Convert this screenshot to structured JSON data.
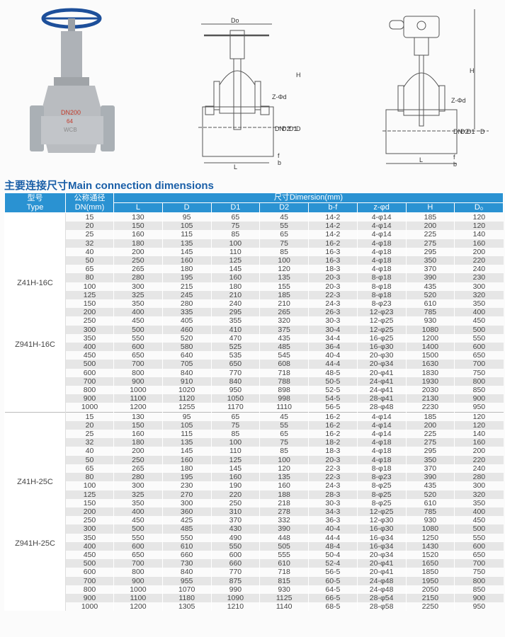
{
  "photo": {
    "marking": "DN200 64 WCB",
    "handwheel_color": "#1d4f9a",
    "body_color": "#b9bcc0"
  },
  "drawing1": {
    "labels": {
      "Do": "Do",
      "H": "H",
      "zd": "Z-Φd",
      "DN": "DN",
      "D2": "D2",
      "D1": "D1",
      "D": "D",
      "L": "L",
      "f": "f",
      "b": "b"
    }
  },
  "drawing2": {
    "labels": {
      "H": "H",
      "zd": "Z-Φd",
      "DN": "DN",
      "D2": "D2",
      "D1": "D1",
      "D": "D",
      "L": "L",
      "f": "f",
      "b": "b"
    }
  },
  "section_title": "主要连接尺寸Main connection dimensions",
  "table": {
    "header": {
      "type_cn": "型号",
      "type_en": "Type",
      "dn_cn": "公称通径",
      "dn_en": "DN(mm)",
      "dim_group": "尺寸Dimersion(mm)",
      "columns": [
        "L",
        "D",
        "D1",
        "D2",
        "b-f",
        "z-φd",
        "H",
        "D₀"
      ]
    },
    "header_color": "#2a92d2",
    "groups": [
      {
        "types": [
          "Z41H-16C",
          "Z941H-16C"
        ],
        "rows": [
          [
            "15",
            "130",
            "95",
            "65",
            "45",
            "14-2",
            "4-φ14",
            "185",
            "120"
          ],
          [
            "20",
            "150",
            "105",
            "75",
            "55",
            "14-2",
            "4-φ14",
            "200",
            "120"
          ],
          [
            "25",
            "160",
            "115",
            "85",
            "65",
            "14-2",
            "4-φ14",
            "225",
            "140"
          ],
          [
            "32",
            "180",
            "135",
            "100",
            "75",
            "16-2",
            "4-φ18",
            "275",
            "160"
          ],
          [
            "40",
            "200",
            "145",
            "110",
            "85",
            "16-3",
            "4-φ18",
            "295",
            "200"
          ],
          [
            "50",
            "250",
            "160",
            "125",
            "100",
            "16-3",
            "4-φ18",
            "350",
            "220"
          ],
          [
            "65",
            "265",
            "180",
            "145",
            "120",
            "18-3",
            "4-φ18",
            "370",
            "240"
          ],
          [
            "80",
            "280",
            "195",
            "160",
            "135",
            "20-3",
            "8-φ18",
            "390",
            "230"
          ],
          [
            "100",
            "300",
            "215",
            "180",
            "155",
            "20-3",
            "8-φ18",
            "435",
            "300"
          ],
          [
            "125",
            "325",
            "245",
            "210",
            "185",
            "22-3",
            "8-φ18",
            "520",
            "320"
          ],
          [
            "150",
            "350",
            "280",
            "240",
            "210",
            "24-3",
            "8-φ23",
            "610",
            "350"
          ],
          [
            "200",
            "400",
            "335",
            "295",
            "265",
            "26-3",
            "12-φ23",
            "785",
            "400"
          ],
          [
            "250",
            "450",
            "405",
            "355",
            "320",
            "30-3",
            "12-φ25",
            "930",
            "450"
          ],
          [
            "300",
            "500",
            "460",
            "410",
            "375",
            "30-4",
            "12-φ25",
            "1080",
            "500"
          ],
          [
            "350",
            "550",
            "520",
            "470",
            "435",
            "34-4",
            "16-φ25",
            "1200",
            "550"
          ],
          [
            "400",
            "600",
            "580",
            "525",
            "485",
            "36-4",
            "16-φ30",
            "1400",
            "600"
          ],
          [
            "450",
            "650",
            "640",
            "535",
            "545",
            "40-4",
            "20-φ30",
            "1500",
            "650"
          ],
          [
            "500",
            "700",
            "705",
            "650",
            "608",
            "44-4",
            "20-φ34",
            "1630",
            "700"
          ],
          [
            "600",
            "800",
            "840",
            "770",
            "718",
            "48-5",
            "20-φ41",
            "1830",
            "750"
          ],
          [
            "700",
            "900",
            "910",
            "840",
            "788",
            "50-5",
            "24-φ41",
            "1930",
            "800"
          ],
          [
            "800",
            "1000",
            "1020",
            "950",
            "898",
            "52-5",
            "24-φ41",
            "2030",
            "850"
          ],
          [
            "900",
            "1100",
            "1120",
            "1050",
            "998",
            "54-5",
            "28-φ41",
            "2130",
            "900"
          ],
          [
            "1000",
            "1200",
            "1255",
            "1170",
            "1110",
            "56-5",
            "28-φ48",
            "2230",
            "950"
          ]
        ]
      },
      {
        "types": [
          "Z41H-25C",
          "Z941H-25C"
        ],
        "rows": [
          [
            "15",
            "130",
            "95",
            "65",
            "45",
            "16-2",
            "4-φ14",
            "185",
            "120"
          ],
          [
            "20",
            "150",
            "105",
            "75",
            "55",
            "16-2",
            "4-φ14",
            "200",
            "120"
          ],
          [
            "25",
            "160",
            "115",
            "85",
            "65",
            "16-2",
            "4-φ14",
            "225",
            "140"
          ],
          [
            "32",
            "180",
            "135",
            "100",
            "75",
            "18-2",
            "4-φ18",
            "275",
            "160"
          ],
          [
            "40",
            "200",
            "145",
            "110",
            "85",
            "18-3",
            "4-φ18",
            "295",
            "200"
          ],
          [
            "50",
            "250",
            "160",
            "125",
            "100",
            "20-3",
            "4-φ18",
            "350",
            "220"
          ],
          [
            "65",
            "265",
            "180",
            "145",
            "120",
            "22-3",
            "8-φ18",
            "370",
            "240"
          ],
          [
            "80",
            "280",
            "195",
            "160",
            "135",
            "22-3",
            "8-φ23",
            "390",
            "280"
          ],
          [
            "100",
            "300",
            "230",
            "190",
            "160",
            "24-3",
            "8-φ25",
            "435",
            "300"
          ],
          [
            "125",
            "325",
            "270",
            "220",
            "188",
            "28-3",
            "8-φ25",
            "520",
            "320"
          ],
          [
            "150",
            "350",
            "300",
            "250",
            "218",
            "30-3",
            "8-φ25",
            "610",
            "350"
          ],
          [
            "200",
            "400",
            "360",
            "310",
            "278",
            "34-3",
            "12-φ25",
            "785",
            "400"
          ],
          [
            "250",
            "450",
            "425",
            "370",
            "332",
            "36-3",
            "12-φ30",
            "930",
            "450"
          ],
          [
            "300",
            "500",
            "485",
            "430",
            "390",
            "40-4",
            "16-φ30",
            "1080",
            "500"
          ],
          [
            "350",
            "550",
            "550",
            "490",
            "448",
            "44-4",
            "16-φ34",
            "1250",
            "550"
          ],
          [
            "400",
            "600",
            "610",
            "550",
            "505",
            "48-4",
            "16-φ34",
            "1430",
            "600"
          ],
          [
            "450",
            "650",
            "660",
            "600",
            "555",
            "50-4",
            "20-φ34",
            "1520",
            "650"
          ],
          [
            "500",
            "700",
            "730",
            "660",
            "610",
            "52-4",
            "20-φ41",
            "1650",
            "700"
          ],
          [
            "600",
            "800",
            "840",
            "770",
            "718",
            "56-5",
            "20-φ41",
            "1850",
            "750"
          ],
          [
            "700",
            "900",
            "955",
            "875",
            "815",
            "60-5",
            "24-φ48",
            "1950",
            "800"
          ],
          [
            "800",
            "1000",
            "1070",
            "990",
            "930",
            "64-5",
            "24-φ48",
            "2050",
            "850"
          ],
          [
            "900",
            "1100",
            "1180",
            "1090",
            "1125",
            "66-5",
            "28-φ54",
            "2150",
            "900"
          ],
          [
            "1000",
            "1200",
            "1305",
            "1210",
            "1140",
            "68-5",
            "28-φ58",
            "2250",
            "950"
          ]
        ]
      }
    ]
  }
}
